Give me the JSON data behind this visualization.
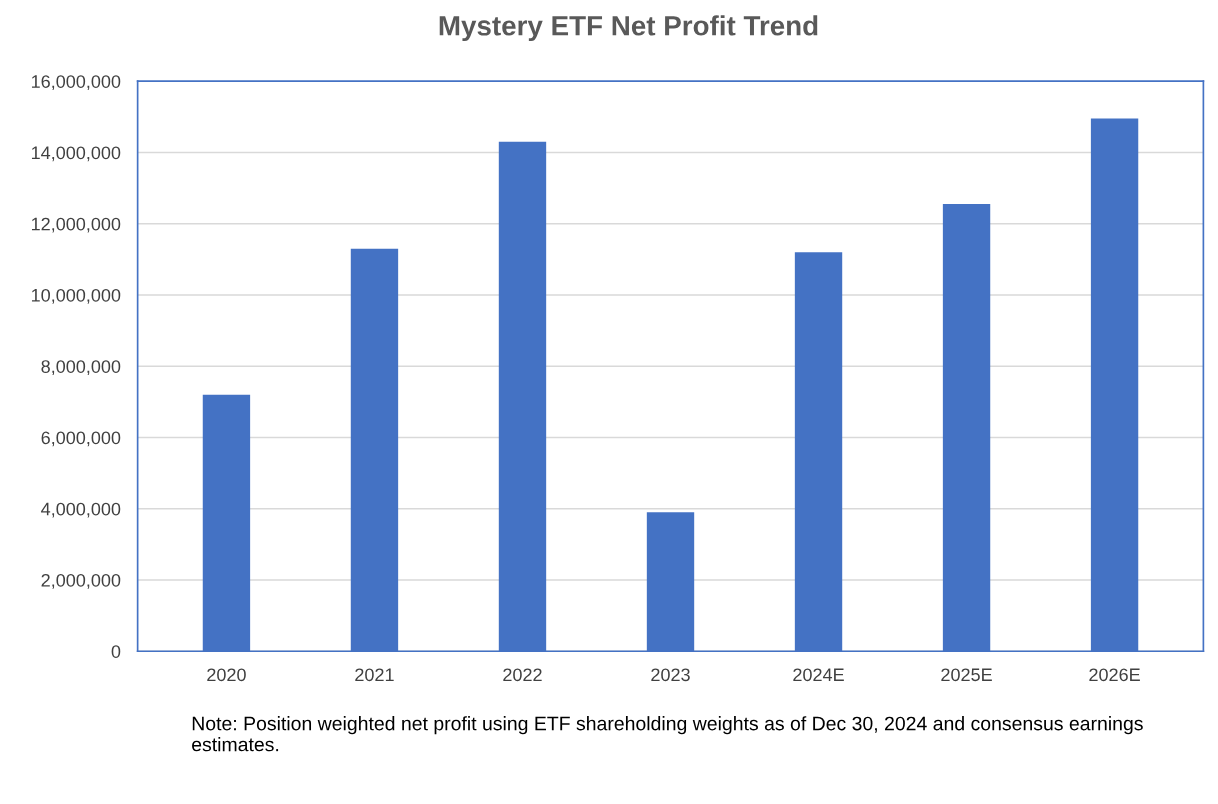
{
  "chart_data": {
    "type": "bar",
    "title": "Mystery ETF Net Profit Trend",
    "categories": [
      "2020",
      "2021",
      "2022",
      "2023",
      "2024E",
      "2025E",
      "2026E"
    ],
    "values": [
      7200000,
      11300000,
      14300000,
      3900000,
      11200000,
      12550000,
      14950000
    ],
    "color": "#4472c4",
    "ylim": [
      0,
      16000000
    ],
    "yticks": [
      {
        "value": 0,
        "label": "0"
      },
      {
        "value": 2000000,
        "label": "2,000,000"
      },
      {
        "value": 4000000,
        "label": "4,000,000"
      },
      {
        "value": 6000000,
        "label": "6,000,000"
      },
      {
        "value": 8000000,
        "label": "8,000,000"
      },
      {
        "value": 10000000,
        "label": "10,000,000"
      },
      {
        "value": 12000000,
        "label": "12,000,000"
      },
      {
        "value": 14000000,
        "label": "14,000,000"
      },
      {
        "value": 16000000,
        "label": "16,000,000"
      }
    ],
    "grid": "y",
    "annotations": [
      "Note: Position weighted net profit using ETF shareholding weights as of Dec 30, 2024 and consensus earnings estimates."
    ]
  }
}
